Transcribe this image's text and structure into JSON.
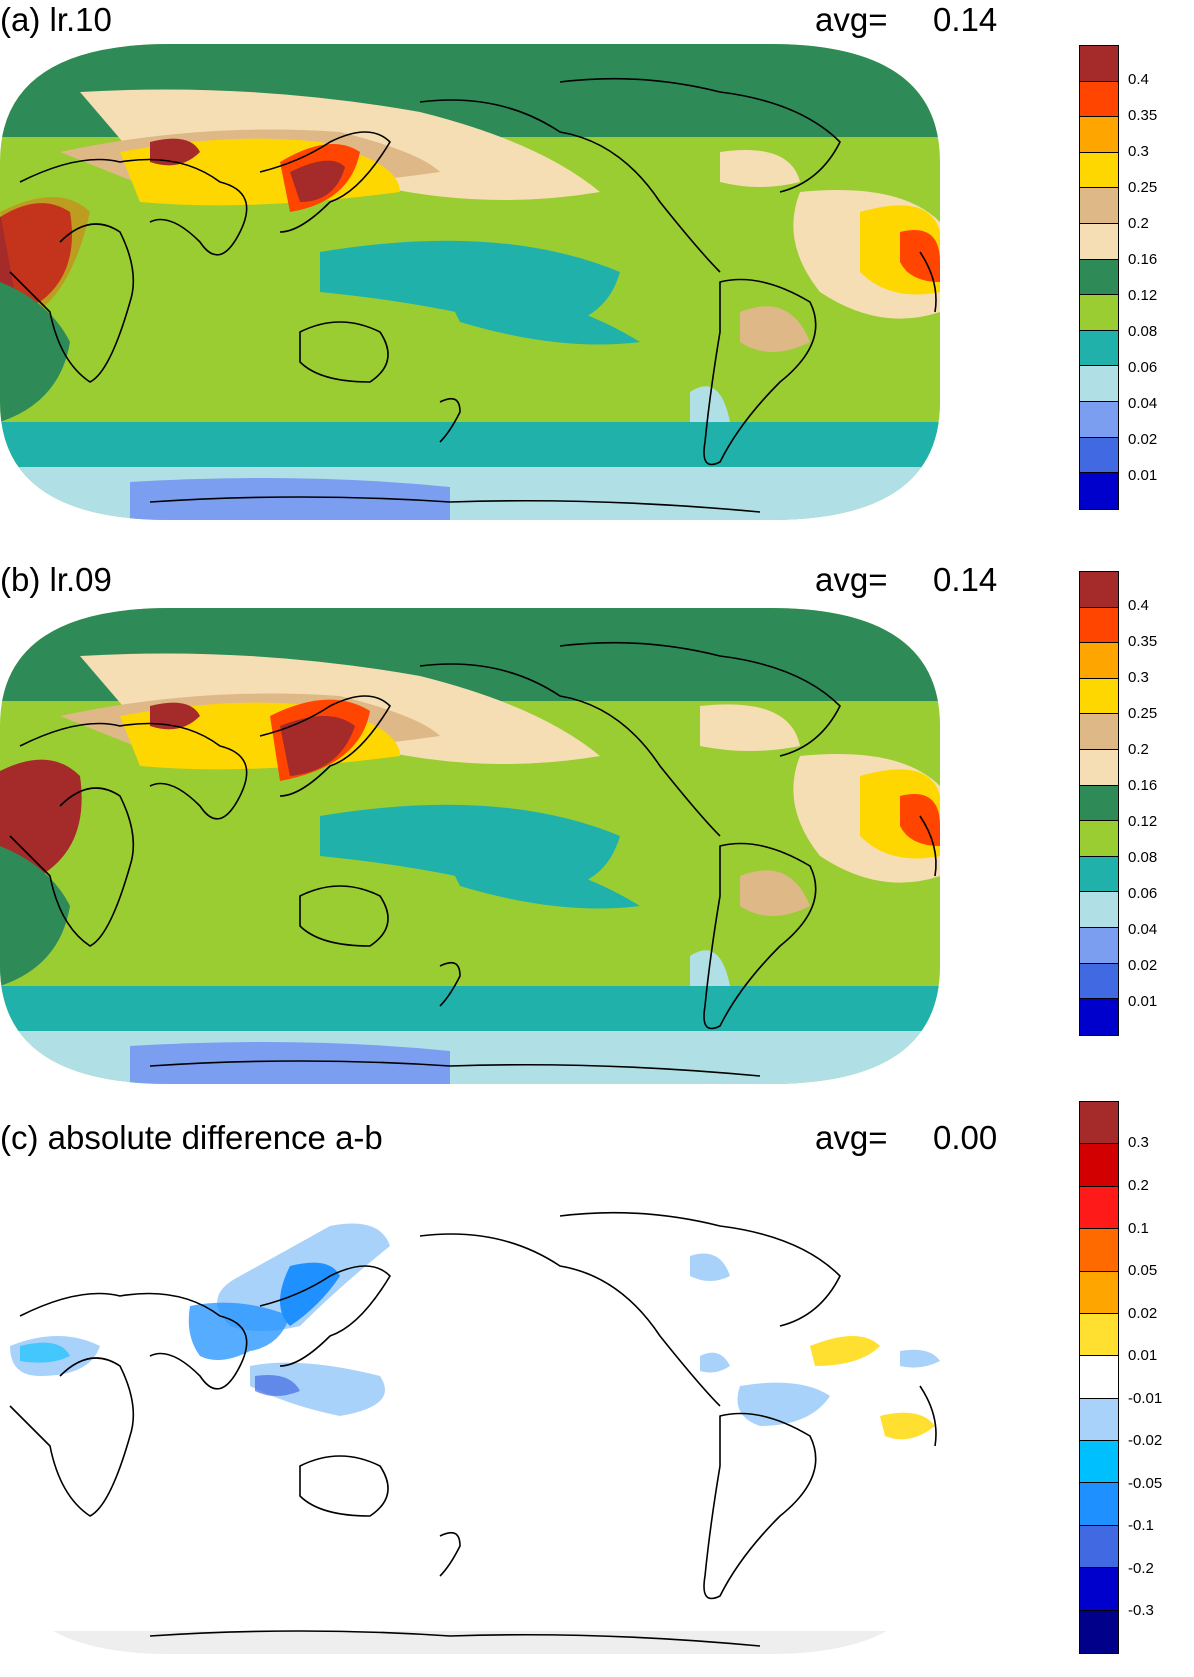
{
  "panels": [
    {
      "id": "a",
      "title": "(a) lr.10",
      "avg_label": "avg=",
      "avg_value": "0.14",
      "colorbar": {
        "colors": [
          "#a52a2a",
          "#ff4500",
          "#ffa500",
          "#ffd700",
          "#deb887",
          "#f5deb3",
          "#2e8b57",
          "#9acd32",
          "#20b2aa",
          "#b0e0e6",
          "#7b9ef0",
          "#4169e1",
          "#0000cd"
        ],
        "labels": [
          "0.4",
          "0.35",
          "0.3",
          "0.25",
          "0.2",
          "0.16",
          "0.12",
          "0.08",
          "0.06",
          "0.04",
          "0.02",
          "0.01"
        ]
      }
    },
    {
      "id": "b",
      "title": "(b) lr.09",
      "avg_label": "avg=",
      "avg_value": "0.14",
      "colorbar": {
        "colors": [
          "#a52a2a",
          "#ff4500",
          "#ffa500",
          "#ffd700",
          "#deb887",
          "#f5deb3",
          "#2e8b57",
          "#9acd32",
          "#20b2aa",
          "#b0e0e6",
          "#7b9ef0",
          "#4169e1",
          "#0000cd"
        ],
        "labels": [
          "0.4",
          "0.35",
          "0.3",
          "0.25",
          "0.2",
          "0.16",
          "0.12",
          "0.08",
          "0.06",
          "0.04",
          "0.02",
          "0.01"
        ]
      }
    },
    {
      "id": "c",
      "title": "(c) absolute difference a-b",
      "avg_label": "avg=",
      "avg_value": "0.00",
      "colorbar": {
        "colors": [
          "#a52a2a",
          "#d20000",
          "#ff1a1a",
          "#ff6a00",
          "#ffa500",
          "#ffe030",
          "#ffffff",
          "#a9d2fa",
          "#00bfff",
          "#1e90ff",
          "#4169e1",
          "#0000cd",
          "#00008b"
        ],
        "labels": [
          "0.3",
          "0.2",
          "0.1",
          "0.05",
          "0.02",
          "0.01",
          "-0.01",
          "-0.02",
          "-0.05",
          "-0.1",
          "-0.2",
          "-0.3"
        ]
      }
    }
  ]
}
